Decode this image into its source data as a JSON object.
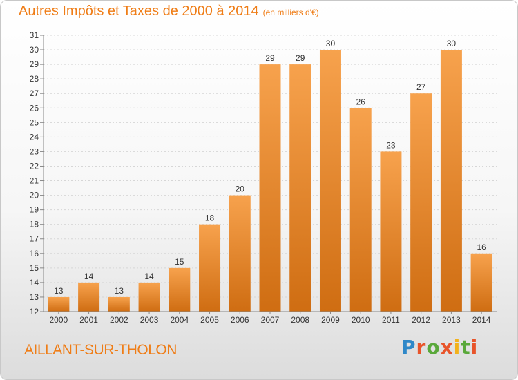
{
  "chart_data": {
    "type": "bar",
    "title": "Autres Impôts et Taxes de 2000 à 2014",
    "unit_label": "(en milliers d'€)",
    "categories": [
      "2000",
      "2001",
      "2002",
      "2003",
      "2004",
      "2005",
      "2006",
      "2007",
      "2008",
      "2009",
      "2010",
      "2011",
      "2012",
      "2013",
      "2014"
    ],
    "values": [
      13,
      14,
      13,
      14,
      15,
      18,
      20,
      29,
      29,
      30,
      26,
      23,
      27,
      30,
      16
    ],
    "ylim": [
      12,
      31
    ],
    "yticks": [
      12,
      13,
      14,
      15,
      16,
      17,
      18,
      19,
      20,
      21,
      22,
      23,
      24,
      25,
      26,
      27,
      28,
      29,
      30,
      31
    ],
    "grid": true,
    "bar_color": "#f3932f",
    "text_color": "#ef7d17"
  },
  "footer": {
    "town": "AILLANT-SUR-THOLON",
    "logo_letters": [
      "P",
      "r",
      "o",
      "x",
      "i",
      "t",
      "i"
    ],
    "logo_colors": [
      "#2f88c8",
      "#e8542a",
      "#59a83a",
      "#e8542a",
      "#f2b21c",
      "#59a83a",
      "#e8542a"
    ]
  }
}
